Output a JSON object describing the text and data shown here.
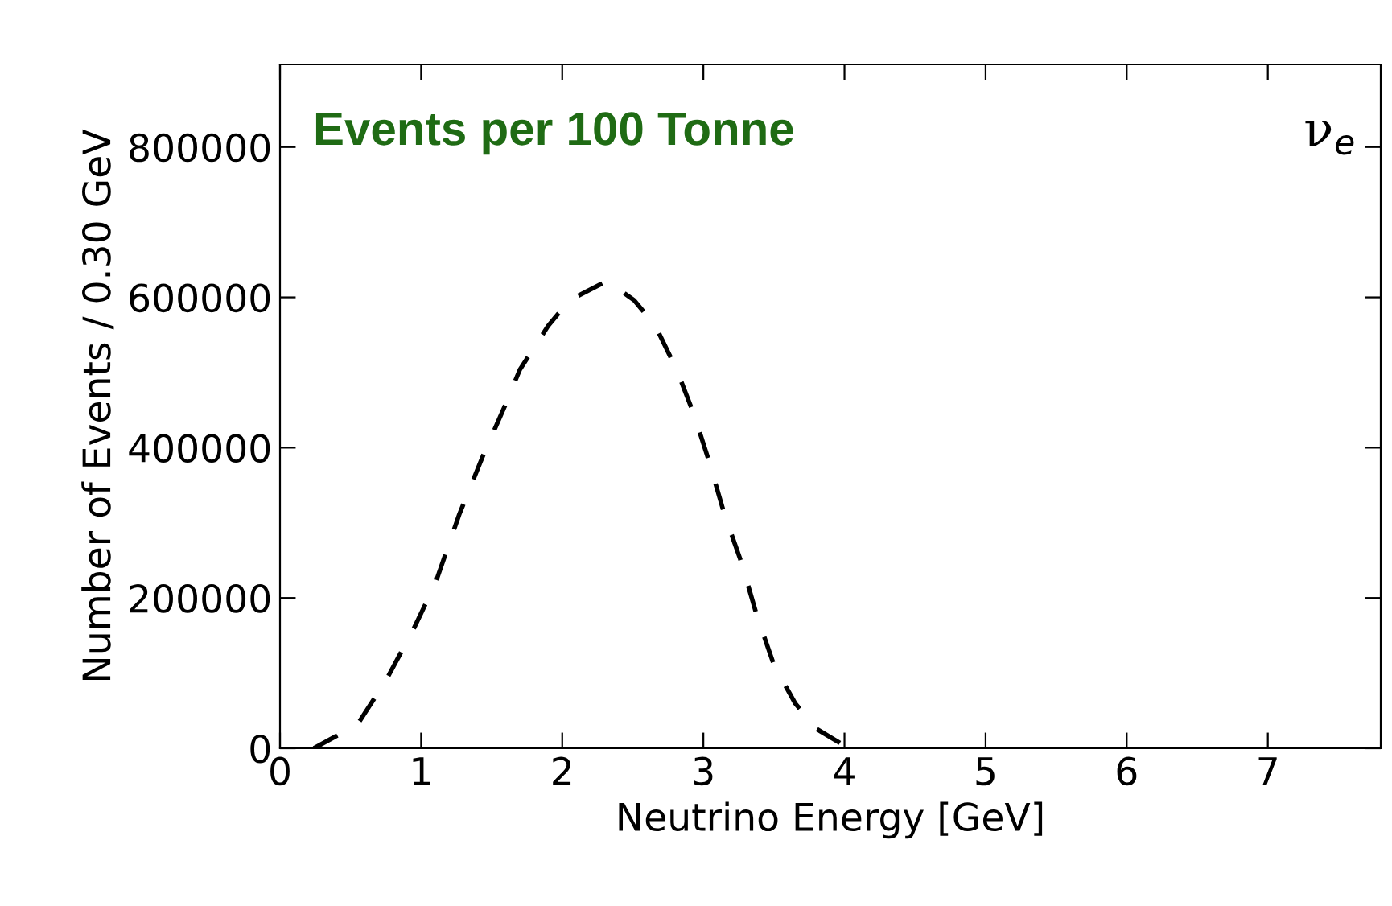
{
  "chart_data": {
    "type": "line",
    "title": "Events per 100 Tonne",
    "xlabel": "Neutrino Energy [GeV]",
    "ylabel": "Number of Events / 0.30 GeV",
    "annotations": [
      "ν$_{e}$"
    ],
    "series": [
      {
        "color": "#000000",
        "line_style": "dashed",
        "x": [
          0.24,
          0.55,
          0.75,
          0.95,
          1.1,
          1.27,
          1.44,
          1.59,
          1.7,
          1.9,
          2.05,
          2.32,
          2.51,
          2.66,
          2.81,
          2.93,
          3.04,
          3.15,
          3.27,
          3.38,
          3.5,
          3.65,
          3.8,
          4.03
        ],
        "values": [
          0,
          32000,
          90000,
          160000,
          219000,
          311000,
          390000,
          454000,
          504000,
          562000,
          596000,
          622000,
          596000,
          562000,
          504000,
          446000,
          382000,
          311000,
          247000,
          176000,
          111000,
          60000,
          26000,
          0
        ]
      }
    ],
    "xlim": [
      0,
      7.8
    ],
    "xticks": [
      0,
      1,
      2,
      3,
      4,
      5,
      6,
      7
    ],
    "ylim": [
      0,
      910000
    ],
    "yticks": [
      0,
      200000,
      400000,
      600000,
      800000
    ],
    "grid": false,
    "legend": false,
    "marker": "none"
  }
}
